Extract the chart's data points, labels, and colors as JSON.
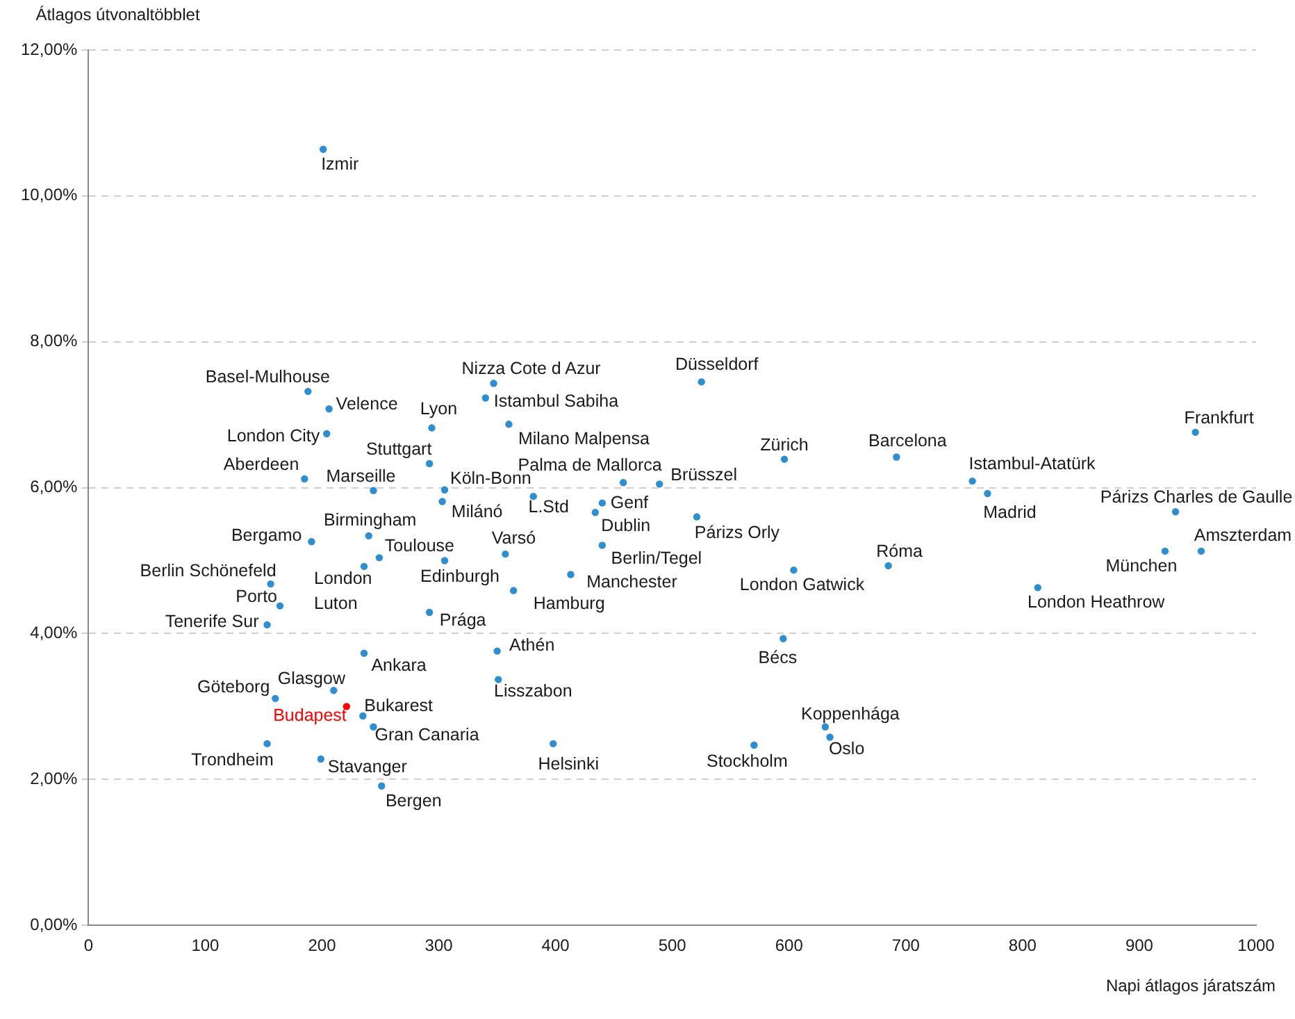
{
  "chart_data": {
    "type": "scatter",
    "xlabel": "Napi átlagos járatszám",
    "ylabel": "Átlagos útvonaltöbblet",
    "xlim": [
      0,
      1000
    ],
    "xticks": [
      0,
      100,
      200,
      300,
      400,
      500,
      600,
      700,
      800,
      900,
      1000
    ],
    "ylim": [
      0,
      12
    ],
    "yticks": [
      {
        "value": 0,
        "label": "0,00%"
      },
      {
        "value": 2,
        "label": "2,00%"
      },
      {
        "value": 4,
        "label": "4,00%"
      },
      {
        "value": 6,
        "label": "6,00%"
      },
      {
        "value": 8,
        "label": "8,00%"
      },
      {
        "value": 10,
        "label": "10,00%"
      },
      {
        "value": 12,
        "label": "12,00%"
      }
    ],
    "grid": "y",
    "legend": false,
    "marker": "circle",
    "series": [
      {
        "name": "Izmir",
        "color": "#2e8ecf",
        "x": [
          201
        ],
        "values": [
          10.64
        ]
      },
      {
        "name": "Basel-Mulhouse",
        "color": "#2e8ecf",
        "x": [
          188
        ],
        "values": [
          7.32
        ]
      },
      {
        "name": "Velence",
        "color": "#2e8ecf",
        "x": [
          206
        ],
        "values": [
          7.08
        ]
      },
      {
        "name": "London City",
        "color": "#2e8ecf",
        "x": [
          204
        ],
        "values": [
          6.74
        ]
      },
      {
        "name": "Lyon",
        "color": "#2e8ecf",
        "x": [
          294
        ],
        "values": [
          6.82
        ]
      },
      {
        "name": "Stuttgart",
        "color": "#2e8ecf",
        "x": [
          292
        ],
        "values": [
          6.33
        ]
      },
      {
        "name": "Aberdeen",
        "color": "#2e8ecf",
        "x": [
          185
        ],
        "values": [
          6.12
        ]
      },
      {
        "name": "Marseille",
        "color": "#2e8ecf",
        "x": [
          244
        ],
        "values": [
          5.96
        ]
      },
      {
        "name": "Köln-Bonn",
        "color": "#2e8ecf",
        "x": [
          305
        ],
        "values": [
          5.97
        ]
      },
      {
        "name": "Milánó",
        "color": "#2e8ecf",
        "x": [
          303
        ],
        "values": [
          5.81
        ]
      },
      {
        "name": "L.Std",
        "color": "#2e8ecf",
        "x": [
          381
        ],
        "values": [
          5.88
        ]
      },
      {
        "name": "Bergamo",
        "color": "#2e8ecf",
        "x": [
          191
        ],
        "values": [
          5.26
        ]
      },
      {
        "name": "Birmingham",
        "color": "#2e8ecf",
        "x": [
          240
        ],
        "values": [
          5.34
        ]
      },
      {
        "name": "Toulouse",
        "color": "#2e8ecf",
        "x": [
          249
        ],
        "values": [
          5.04
        ]
      },
      {
        "name": "London Luton",
        "color": "#2e8ecf",
        "x": [
          236
        ],
        "values": [
          4.92
        ]
      },
      {
        "name": "Edinburgh",
        "color": "#2e8ecf",
        "x": [
          305
        ],
        "values": [
          5.0
        ]
      },
      {
        "name": "Varsó",
        "color": "#2e8ecf",
        "x": [
          357
        ],
        "values": [
          5.09
        ]
      },
      {
        "name": "Berlin Schönefeld",
        "color": "#2e8ecf",
        "x": [
          156
        ],
        "values": [
          4.68
        ]
      },
      {
        "name": "Porto",
        "color": "#2e8ecf",
        "x": [
          164
        ],
        "values": [
          4.38
        ]
      },
      {
        "name": "Tenerife Sur",
        "color": "#2e8ecf",
        "x": [
          153
        ],
        "values": [
          4.12
        ]
      },
      {
        "name": "Hamburg",
        "color": "#2e8ecf",
        "x": [
          364
        ],
        "values": [
          4.59
        ]
      },
      {
        "name": "Prága",
        "color": "#2e8ecf",
        "x": [
          292
        ],
        "values": [
          4.29
        ]
      },
      {
        "name": "Ankara",
        "color": "#2e8ecf",
        "x": [
          236
        ],
        "values": [
          3.73
        ]
      },
      {
        "name": "Athén",
        "color": "#2e8ecf",
        "x": [
          350
        ],
        "values": [
          3.76
        ]
      },
      {
        "name": "Lisszabon",
        "color": "#2e8ecf",
        "x": [
          351
        ],
        "values": [
          3.37
        ]
      },
      {
        "name": "Göteborg",
        "color": "#2e8ecf",
        "x": [
          160
        ],
        "values": [
          3.11
        ]
      },
      {
        "name": "Glasgow",
        "color": "#2e8ecf",
        "x": [
          210
        ],
        "values": [
          3.22
        ]
      },
      {
        "name": "Budapest",
        "color": "#ff0000",
        "x": [
          221
        ],
        "values": [
          3.0
        ]
      },
      {
        "name": "Bukarest",
        "color": "#2e8ecf",
        "x": [
          235
        ],
        "values": [
          2.87
        ]
      },
      {
        "name": "Gran Canaria",
        "color": "#2e8ecf",
        "x": [
          244
        ],
        "values": [
          2.72
        ]
      },
      {
        "name": "Trondheim",
        "color": "#2e8ecf",
        "x": [
          153
        ],
        "values": [
          2.49
        ]
      },
      {
        "name": "Stavanger",
        "color": "#2e8ecf",
        "x": [
          199
        ],
        "values": [
          2.28
        ]
      },
      {
        "name": "Bergen",
        "color": "#2e8ecf",
        "x": [
          251
        ],
        "values": [
          1.91
        ]
      },
      {
        "name": "Helsinki",
        "color": "#2e8ecf",
        "x": [
          398
        ],
        "values": [
          2.49
        ]
      },
      {
        "name": "Nizza Cote d Azur",
        "color": "#2e8ecf",
        "x": [
          347
        ],
        "values": [
          7.43
        ]
      },
      {
        "name": "Istambul Sabiha",
        "color": "#2e8ecf",
        "x": [
          340
        ],
        "values": [
          7.23
        ]
      },
      {
        "name": "Milano Malpensa",
        "color": "#2e8ecf",
        "x": [
          360
        ],
        "values": [
          6.87
        ]
      },
      {
        "name": "Düsseldorf",
        "color": "#2e8ecf",
        "x": [
          525
        ],
        "values": [
          7.45
        ]
      },
      {
        "name": "Zürich",
        "color": "#2e8ecf",
        "x": [
          596
        ],
        "values": [
          6.39
        ]
      },
      {
        "name": "Palma de Mallorca",
        "color": "#2e8ecf",
        "x": [
          458
        ],
        "values": [
          6.07
        ]
      },
      {
        "name": "Brüsszel",
        "color": "#2e8ecf",
        "x": [
          489
        ],
        "values": [
          6.05
        ]
      },
      {
        "name": "Genf",
        "color": "#2e8ecf",
        "x": [
          440
        ],
        "values": [
          5.79
        ]
      },
      {
        "name": "Dublin",
        "color": "#2e8ecf",
        "x": [
          434
        ],
        "values": [
          5.66
        ]
      },
      {
        "name": "Párizs Orly",
        "color": "#2e8ecf",
        "x": [
          521
        ],
        "values": [
          5.6
        ]
      },
      {
        "name": "Berlin/Tegel",
        "color": "#2e8ecf",
        "x": [
          440
        ],
        "values": [
          5.21
        ]
      },
      {
        "name": "Manchester",
        "color": "#2e8ecf",
        "x": [
          413
        ],
        "values": [
          4.81
        ]
      },
      {
        "name": "London Gatwick",
        "color": "#2e8ecf",
        "x": [
          604
        ],
        "values": [
          4.87
        ]
      },
      {
        "name": "Bécs",
        "color": "#2e8ecf",
        "x": [
          595
        ],
        "values": [
          3.93
        ]
      },
      {
        "name": "Stockholm",
        "color": "#2e8ecf",
        "x": [
          570
        ],
        "values": [
          2.47
        ]
      },
      {
        "name": "Koppenhága",
        "color": "#2e8ecf",
        "x": [
          631
        ],
        "values": [
          2.72
        ]
      },
      {
        "name": "Oslo",
        "color": "#2e8ecf",
        "x": [
          635
        ],
        "values": [
          2.58
        ]
      },
      {
        "name": "Barcelona",
        "color": "#2e8ecf",
        "x": [
          692
        ],
        "values": [
          6.42
        ]
      },
      {
        "name": "Istambul-Atatürk",
        "color": "#2e8ecf",
        "x": [
          757
        ],
        "values": [
          6.09
        ]
      },
      {
        "name": "Madrid",
        "color": "#2e8ecf",
        "x": [
          770
        ],
        "values": [
          5.92
        ]
      },
      {
        "name": "Frankfurt",
        "color": "#2e8ecf",
        "x": [
          948
        ],
        "values": [
          6.76
        ]
      },
      {
        "name": "Párizs Charles de Gaulle",
        "color": "#2e8ecf",
        "x": [
          931
        ],
        "values": [
          5.67
        ]
      },
      {
        "name": "München",
        "color": "#2e8ecf",
        "x": [
          922
        ],
        "values": [
          5.13
        ]
      },
      {
        "name": "Amszterdam",
        "color": "#2e8ecf",
        "x": [
          953
        ],
        "values": [
          5.13
        ]
      },
      {
        "name": "Róma",
        "color": "#2e8ecf",
        "x": [
          685
        ],
        "values": [
          4.93
        ]
      },
      {
        "name": "London Heathrow",
        "color": "#2e8ecf",
        "x": [
          813
        ],
        "values": [
          4.63
        ]
      }
    ]
  }
}
